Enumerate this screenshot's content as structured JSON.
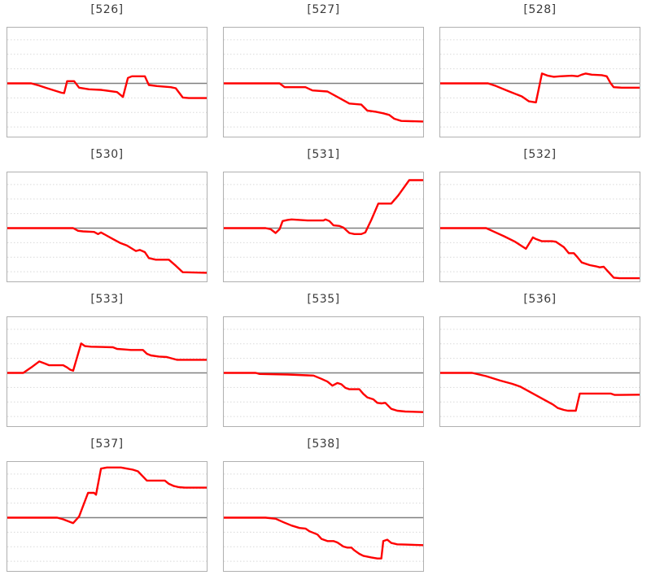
{
  "style": {
    "background_color": "#ffffff",
    "series_color": "#ff0000",
    "baseline_color": "#808080",
    "grid_color": "#d9d9d9",
    "frame_border_color": "#b0b0b0",
    "title_color": "#3a3a3a"
  },
  "chart_data": {
    "type": "line",
    "layout": {
      "columns": 3,
      "grid": "horizontal-dotted",
      "zero_baseline": "solid-gray",
      "x_axis_labels": false,
      "y_axis_labels": false,
      "legend": "none",
      "zero_frac_from_top": 0.511,
      "grid_values": [
        0.8,
        0.534,
        0.267,
        -0.267,
        -0.534,
        -0.8
      ],
      "y_scale_note": "y values normalized per panel: 0 = gray baseline, +1 = panel top, -1 = panel bottom; x = fraction of panel width"
    },
    "charts": [
      {
        "title": "[526]",
        "points": [
          [
            0,
            0
          ],
          [
            0.12,
            0
          ],
          [
            0.16,
            -0.04
          ],
          [
            0.2,
            -0.09
          ],
          [
            0.27,
            -0.17
          ],
          [
            0.285,
            -0.18
          ],
          [
            0.3,
            0.04
          ],
          [
            0.335,
            0.04
          ],
          [
            0.36,
            -0.08
          ],
          [
            0.41,
            -0.11
          ],
          [
            0.47,
            -0.12
          ],
          [
            0.55,
            -0.16
          ],
          [
            0.58,
            -0.25
          ],
          [
            0.605,
            0.1
          ],
          [
            0.625,
            0.13
          ],
          [
            0.69,
            0.13
          ],
          [
            0.71,
            -0.03
          ],
          [
            0.75,
            -0.05
          ],
          [
            0.82,
            -0.07
          ],
          [
            0.845,
            -0.09
          ],
          [
            0.88,
            -0.26
          ],
          [
            0.91,
            -0.27
          ],
          [
            1,
            -0.27
          ]
        ]
      },
      {
        "title": "[527]",
        "points": [
          [
            0,
            0
          ],
          [
            0.28,
            0
          ],
          [
            0.305,
            -0.07
          ],
          [
            0.41,
            -0.07
          ],
          [
            0.445,
            -0.13
          ],
          [
            0.52,
            -0.15
          ],
          [
            0.58,
            -0.27
          ],
          [
            0.63,
            -0.37
          ],
          [
            0.69,
            -0.39
          ],
          [
            0.72,
            -0.5
          ],
          [
            0.76,
            -0.52
          ],
          [
            0.8,
            -0.55
          ],
          [
            0.83,
            -0.58
          ],
          [
            0.855,
            -0.65
          ],
          [
            0.89,
            -0.69
          ],
          [
            1,
            -0.7
          ]
        ]
      },
      {
        "title": "[528]",
        "points": [
          [
            0,
            0
          ],
          [
            0.24,
            0
          ],
          [
            0.28,
            -0.05
          ],
          [
            0.34,
            -0.14
          ],
          [
            0.41,
            -0.24
          ],
          [
            0.445,
            -0.33
          ],
          [
            0.48,
            -0.35
          ],
          [
            0.51,
            0.18
          ],
          [
            0.54,
            0.14
          ],
          [
            0.57,
            0.12
          ],
          [
            0.6,
            0.13
          ],
          [
            0.66,
            0.14
          ],
          [
            0.69,
            0.13
          ],
          [
            0.71,
            0.16
          ],
          [
            0.73,
            0.18
          ],
          [
            0.76,
            0.16
          ],
          [
            0.81,
            0.15
          ],
          [
            0.835,
            0.13
          ],
          [
            0.855,
            0.0
          ],
          [
            0.87,
            -0.07
          ],
          [
            0.91,
            -0.08
          ],
          [
            1,
            -0.08
          ]
        ]
      },
      {
        "title": "[530]",
        "points": [
          [
            0,
            0
          ],
          [
            0.33,
            0
          ],
          [
            0.355,
            -0.05
          ],
          [
            0.38,
            -0.06
          ],
          [
            0.435,
            -0.07
          ],
          [
            0.455,
            -0.11
          ],
          [
            0.47,
            -0.08
          ],
          [
            0.49,
            -0.12
          ],
          [
            0.53,
            -0.2
          ],
          [
            0.565,
            -0.27
          ],
          [
            0.6,
            -0.32
          ],
          [
            0.645,
            -0.42
          ],
          [
            0.665,
            -0.4
          ],
          [
            0.69,
            -0.44
          ],
          [
            0.71,
            -0.55
          ],
          [
            0.745,
            -0.58
          ],
          [
            0.81,
            -0.58
          ],
          [
            0.845,
            -0.69
          ],
          [
            0.88,
            -0.81
          ],
          [
            1,
            -0.82
          ]
        ]
      },
      {
        "title": "[531]",
        "points": [
          [
            0,
            0
          ],
          [
            0.21,
            0
          ],
          [
            0.235,
            -0.02
          ],
          [
            0.26,
            -0.09
          ],
          [
            0.28,
            -0.02
          ],
          [
            0.295,
            0.13
          ],
          [
            0.32,
            0.15
          ],
          [
            0.34,
            0.16
          ],
          [
            0.38,
            0.15
          ],
          [
            0.42,
            0.14
          ],
          [
            0.5,
            0.14
          ],
          [
            0.51,
            0.16
          ],
          [
            0.53,
            0.13
          ],
          [
            0.55,
            0.05
          ],
          [
            0.58,
            0.04
          ],
          [
            0.6,
            0.01
          ],
          [
            0.615,
            -0.04
          ],
          [
            0.63,
            -0.09
          ],
          [
            0.655,
            -0.11
          ],
          [
            0.69,
            -0.11
          ],
          [
            0.71,
            -0.08
          ],
          [
            0.74,
            0.15
          ],
          [
            0.775,
            0.45
          ],
          [
            0.84,
            0.45
          ],
          [
            0.875,
            0.6
          ],
          [
            0.93,
            0.88
          ],
          [
            1,
            0.88
          ]
        ]
      },
      {
        "title": "[532]",
        "points": [
          [
            0,
            0
          ],
          [
            0.23,
            0
          ],
          [
            0.26,
            -0.05
          ],
          [
            0.32,
            -0.15
          ],
          [
            0.375,
            -0.25
          ],
          [
            0.43,
            -0.38
          ],
          [
            0.465,
            -0.17
          ],
          [
            0.48,
            -0.2
          ],
          [
            0.51,
            -0.24
          ],
          [
            0.56,
            -0.24
          ],
          [
            0.58,
            -0.25
          ],
          [
            0.62,
            -0.35
          ],
          [
            0.645,
            -0.46
          ],
          [
            0.67,
            -0.46
          ],
          [
            0.69,
            -0.54
          ],
          [
            0.71,
            -0.63
          ],
          [
            0.75,
            -0.68
          ],
          [
            0.78,
            -0.7
          ],
          [
            0.8,
            -0.72
          ],
          [
            0.82,
            -0.71
          ],
          [
            0.845,
            -0.81
          ],
          [
            0.87,
            -0.91
          ],
          [
            0.9,
            -0.92
          ],
          [
            1,
            -0.92
          ]
        ]
      },
      {
        "title": "[533]",
        "points": [
          [
            0,
            0
          ],
          [
            0.08,
            0
          ],
          [
            0.12,
            0.1
          ],
          [
            0.16,
            0.21
          ],
          [
            0.19,
            0.17
          ],
          [
            0.21,
            0.14
          ],
          [
            0.28,
            0.14
          ],
          [
            0.3,
            0.1
          ],
          [
            0.315,
            0.06
          ],
          [
            0.33,
            0.04
          ],
          [
            0.37,
            0.54
          ],
          [
            0.39,
            0.49
          ],
          [
            0.42,
            0.48
          ],
          [
            0.53,
            0.47
          ],
          [
            0.55,
            0.44
          ],
          [
            0.59,
            0.43
          ],
          [
            0.62,
            0.42
          ],
          [
            0.68,
            0.42
          ],
          [
            0.7,
            0.35
          ],
          [
            0.72,
            0.32
          ],
          [
            0.76,
            0.3
          ],
          [
            0.8,
            0.29
          ],
          [
            0.82,
            0.27
          ],
          [
            0.85,
            0.24
          ],
          [
            1,
            0.24
          ]
        ]
      },
      {
        "title": "[535]",
        "points": [
          [
            0,
            0
          ],
          [
            0.16,
            0
          ],
          [
            0.18,
            -0.02
          ],
          [
            0.32,
            -0.03
          ],
          [
            0.42,
            -0.045
          ],
          [
            0.45,
            -0.05
          ],
          [
            0.49,
            -0.11
          ],
          [
            0.52,
            -0.16
          ],
          [
            0.545,
            -0.235
          ],
          [
            0.57,
            -0.185
          ],
          [
            0.59,
            -0.21
          ],
          [
            0.61,
            -0.275
          ],
          [
            0.63,
            -0.3
          ],
          [
            0.68,
            -0.3
          ],
          [
            0.7,
            -0.385
          ],
          [
            0.72,
            -0.45
          ],
          [
            0.75,
            -0.485
          ],
          [
            0.77,
            -0.55
          ],
          [
            0.79,
            -0.56
          ],
          [
            0.81,
            -0.55
          ],
          [
            0.84,
            -0.66
          ],
          [
            0.87,
            -0.695
          ],
          [
            0.91,
            -0.71
          ],
          [
            1,
            -0.72
          ]
        ]
      },
      {
        "title": "[536]",
        "points": [
          [
            0,
            0
          ],
          [
            0.16,
            0
          ],
          [
            0.23,
            -0.06
          ],
          [
            0.3,
            -0.14
          ],
          [
            0.36,
            -0.2
          ],
          [
            0.4,
            -0.25
          ],
          [
            0.44,
            -0.33
          ],
          [
            0.48,
            -0.41
          ],
          [
            0.52,
            -0.49
          ],
          [
            0.565,
            -0.58
          ],
          [
            0.59,
            -0.645
          ],
          [
            0.62,
            -0.68
          ],
          [
            0.64,
            -0.695
          ],
          [
            0.68,
            -0.695
          ],
          [
            0.7,
            -0.38
          ],
          [
            0.855,
            -0.38
          ],
          [
            0.875,
            -0.405
          ],
          [
            1,
            -0.4
          ]
        ]
      },
      {
        "title": "[537]",
        "points": [
          [
            0,
            0
          ],
          [
            0.25,
            0
          ],
          [
            0.28,
            -0.03
          ],
          [
            0.33,
            -0.1
          ],
          [
            0.36,
            0.02
          ],
          [
            0.405,
            0.455
          ],
          [
            0.435,
            0.455
          ],
          [
            0.445,
            0.42
          ],
          [
            0.47,
            0.9
          ],
          [
            0.5,
            0.92
          ],
          [
            0.57,
            0.92
          ],
          [
            0.6,
            0.9
          ],
          [
            0.63,
            0.88
          ],
          [
            0.655,
            0.85
          ],
          [
            0.7,
            0.68
          ],
          [
            0.79,
            0.68
          ],
          [
            0.81,
            0.62
          ],
          [
            0.835,
            0.58
          ],
          [
            0.86,
            0.56
          ],
          [
            0.89,
            0.55
          ],
          [
            1,
            0.55
          ]
        ]
      },
      {
        "title": "[538]",
        "points": [
          [
            0,
            0
          ],
          [
            0.21,
            0
          ],
          [
            0.26,
            -0.02
          ],
          [
            0.3,
            -0.085
          ],
          [
            0.34,
            -0.145
          ],
          [
            0.38,
            -0.19
          ],
          [
            0.41,
            -0.2
          ],
          [
            0.43,
            -0.25
          ],
          [
            0.47,
            -0.31
          ],
          [
            0.49,
            -0.39
          ],
          [
            0.52,
            -0.43
          ],
          [
            0.55,
            -0.43
          ],
          [
            0.57,
            -0.455
          ],
          [
            0.6,
            -0.53
          ],
          [
            0.62,
            -0.55
          ],
          [
            0.64,
            -0.55
          ],
          [
            0.655,
            -0.6
          ],
          [
            0.68,
            -0.665
          ],
          [
            0.7,
            -0.7
          ],
          [
            0.74,
            -0.73
          ],
          [
            0.77,
            -0.75
          ],
          [
            0.79,
            -0.75
          ],
          [
            0.8,
            -0.43
          ],
          [
            0.82,
            -0.405
          ],
          [
            0.84,
            -0.465
          ],
          [
            0.87,
            -0.49
          ],
          [
            0.91,
            -0.495
          ],
          [
            1,
            -0.505
          ]
        ]
      }
    ]
  }
}
